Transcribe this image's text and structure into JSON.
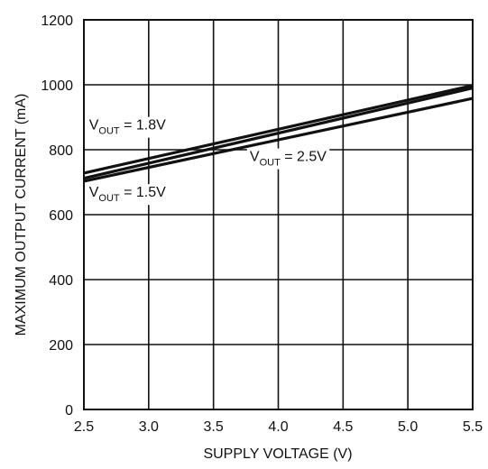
{
  "chart_data": {
    "type": "line",
    "xlabel": "SUPPLY VOLTAGE (V)",
    "ylabel": "MAXIMUM OUTPUT CURRENT (mA)",
    "xlim": [
      2.5,
      5.5
    ],
    "ylim": [
      0,
      1200
    ],
    "x_ticks": [
      "2.5",
      "3.0",
      "3.5",
      "4.0",
      "4.5",
      "5.0",
      "5.5"
    ],
    "y_ticks": [
      "0",
      "200",
      "400",
      "600",
      "800",
      "1000",
      "1200"
    ],
    "grid": true,
    "series": [
      {
        "name_main": "V",
        "name_sub": "OUT",
        "name_rest": " = 1.8V",
        "x": [
          2.5,
          5.5
        ],
        "y": [
          728,
          998
        ]
      },
      {
        "name_main": "V",
        "name_sub": "OUT",
        "name_rest": " = 1.5V",
        "x": [
          2.5,
          5.5
        ],
        "y": [
          712,
          990
        ]
      },
      {
        "name_main": "V",
        "name_sub": "OUT",
        "name_rest": " = 2.5V",
        "x": [
          2.5,
          5.5
        ],
        "y": [
          703,
          958
        ]
      }
    ]
  },
  "colors": {
    "line": "#111111",
    "grid": "#111111",
    "background": "#ffffff"
  }
}
